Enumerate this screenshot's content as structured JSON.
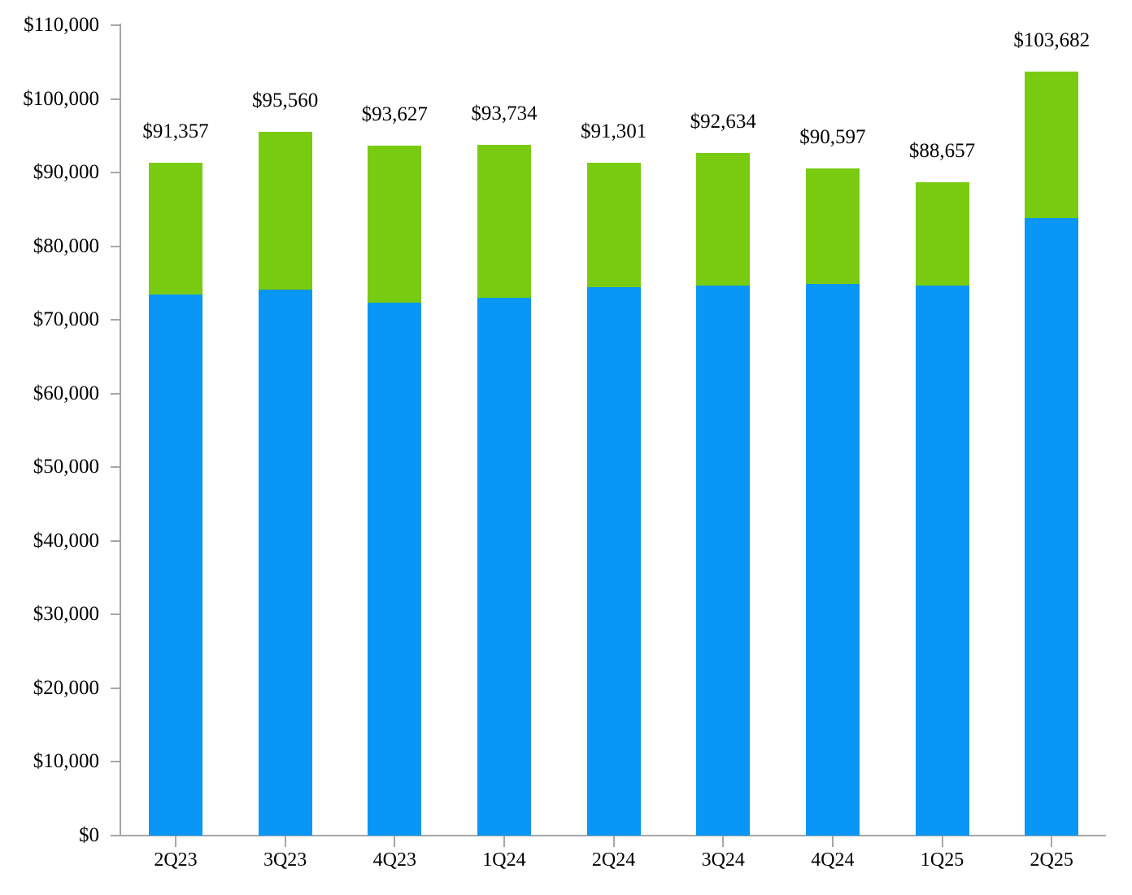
{
  "chart_data": {
    "type": "bar",
    "stacked": true,
    "title": "",
    "legend": "none",
    "grid": false,
    "categories": [
      "2Q23",
      "3Q23",
      "4Q23",
      "1Q24",
      "2Q24",
      "3Q24",
      "4Q24",
      "1Q25",
      "2Q25"
    ],
    "series": [
      {
        "name": "bottom-blue-segment",
        "color": "#0996f5",
        "values": [
          73400,
          74100,
          72300,
          73000,
          74400,
          74700,
          74900,
          74700,
          83800
        ]
      },
      {
        "name": "top-green-segment",
        "color": "#79cb11",
        "values": [
          17957,
          21460,
          21327,
          20734,
          16901,
          17934,
          15697,
          13957,
          19882
        ]
      }
    ],
    "totals": [
      91357,
      95560,
      93627,
      93734,
      91301,
      92634,
      90597,
      88657,
      103682
    ],
    "total_labels": [
      "$91,357",
      "$95,560",
      "$93,627",
      "$93,734",
      "$91,301",
      "$92,634",
      "$90,597",
      "$88,657",
      "$103,682"
    ],
    "y_axis": {
      "min": 0,
      "max": 110000,
      "step": 10000,
      "tick_values": [
        0,
        10000,
        20000,
        30000,
        40000,
        50000,
        60000,
        70000,
        80000,
        90000,
        100000,
        110000
      ],
      "tick_labels": [
        "$0",
        "$10,000",
        "$20,000",
        "$30,000",
        "$40,000",
        "$50,000",
        "$60,000",
        "$70,000",
        "$80,000",
        "$90,000",
        "$100,000",
        "$110,000"
      ]
    },
    "x_axis": {
      "tick_labels": [
        "2Q23",
        "3Q23",
        "4Q23",
        "1Q24",
        "2Q24",
        "3Q24",
        "4Q24",
        "1Q25",
        "2Q25"
      ]
    },
    "colors": {
      "bar_blue": "#0996f5",
      "bar_green": "#79cb11",
      "axis": "#a6a6a6",
      "text": "#000000",
      "background": "#ffffff"
    }
  }
}
